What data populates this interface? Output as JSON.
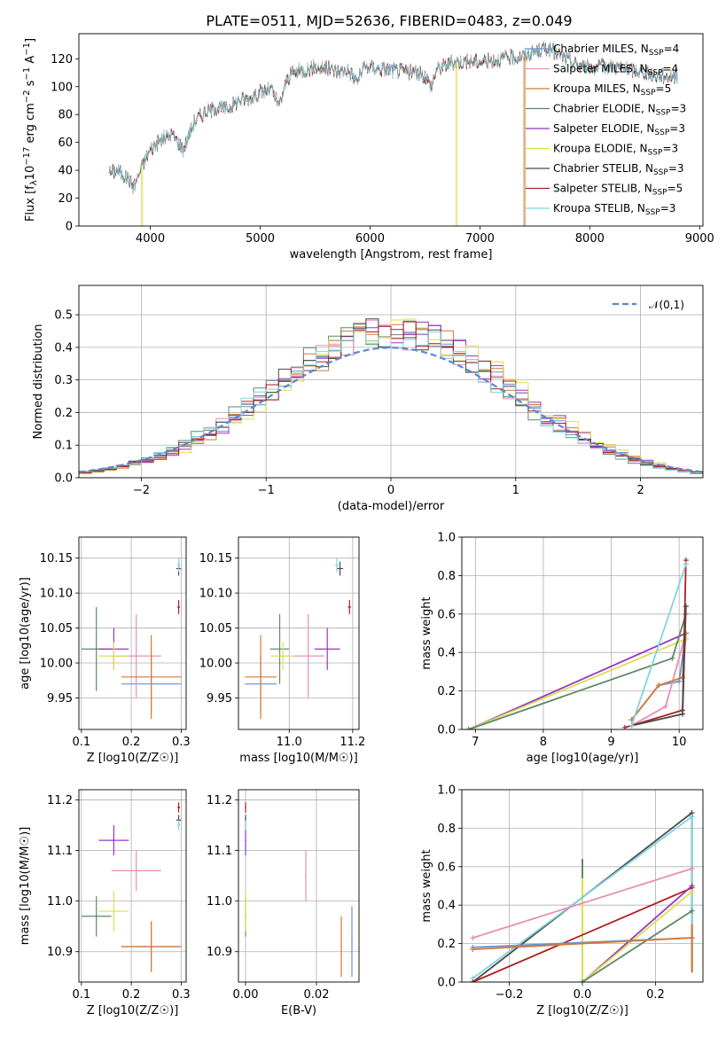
{
  "title": "PLATE=0511, MJD=52636, FIBERID=0483, z=0.049",
  "series": [
    {
      "name": "Chabrier MILES, N",
      "nssp": "4",
      "color": "#6a8fd6"
    },
    {
      "name": "Salpeter MILES, N",
      "nssp": "4",
      "color": "#e88fb4"
    },
    {
      "name": "Kroupa MILES, N",
      "nssp": "5",
      "color": "#d47a33"
    },
    {
      "name": "Chabrier ELODIE, N",
      "nssp": "3",
      "color": "#5e8a66"
    },
    {
      "name": "Salpeter ELODIE, N",
      "nssp": "3",
      "color": "#9a35c0"
    },
    {
      "name": "Kroupa ELODIE, N",
      "nssp": "3",
      "color": "#d9e050"
    },
    {
      "name": "Chabrier STELIB, N",
      "nssp": "3",
      "color": "#4a4a4a"
    },
    {
      "name": "Salpeter STELIB, N",
      "nssp": "5",
      "color": "#b01e1e"
    },
    {
      "name": "Kroupa STELIB, N",
      "nssp": "3",
      "color": "#80d4e0"
    }
  ],
  "legend_sub": "SSP",
  "chart_data": [
    {
      "type": "line",
      "id": "spectrum",
      "xlabel": "wavelength [Angstrom, rest frame]",
      "ylabel_html": "Flux [f_λ10^-17 erg cm^-2 s^-1 A^-1]",
      "xlim": [
        3350,
        9030
      ],
      "ylim": [
        0,
        138
      ],
      "xticks": [
        4000,
        5000,
        6000,
        7000,
        8000,
        9000
      ],
      "yticks": [
        0,
        20,
        40,
        60,
        80,
        100,
        120
      ],
      "envelope": [
        [
          3620,
          38
        ],
        [
          3700,
          40
        ],
        [
          3800,
          34
        ],
        [
          3850,
          28
        ],
        [
          3930,
          44
        ],
        [
          4000,
          55
        ],
        [
          4100,
          62
        ],
        [
          4200,
          66
        ],
        [
          4300,
          55
        ],
        [
          4400,
          75
        ],
        [
          4500,
          82
        ],
        [
          4600,
          85
        ],
        [
          4700,
          84
        ],
        [
          4800,
          90
        ],
        [
          4900,
          92
        ],
        [
          5000,
          96
        ],
        [
          5100,
          98
        ],
        [
          5170,
          86
        ],
        [
          5250,
          106
        ],
        [
          5300,
          110
        ],
        [
          5400,
          112
        ],
        [
          5500,
          114
        ],
        [
          5600,
          113
        ],
        [
          5700,
          111
        ],
        [
          5800,
          112
        ],
        [
          5880,
          104
        ],
        [
          5950,
          114
        ],
        [
          6000,
          114
        ],
        [
          6100,
          113
        ],
        [
          6200,
          112
        ],
        [
          6300,
          111
        ],
        [
          6400,
          110
        ],
        [
          6500,
          108
        ],
        [
          6560,
          100
        ],
        [
          6600,
          112
        ],
        [
          6700,
          116
        ],
        [
          6800,
          118
        ],
        [
          6900,
          118
        ],
        [
          7000,
          118
        ],
        [
          7100,
          119
        ],
        [
          7200,
          120
        ],
        [
          7300,
          121
        ],
        [
          7400,
          122
        ],
        [
          7500,
          125
        ],
        [
          7600,
          128
        ],
        [
          7700,
          124
        ],
        [
          7800,
          119
        ],
        [
          7900,
          115
        ],
        [
          8000,
          114
        ],
        [
          8100,
          114
        ],
        [
          8200,
          115
        ],
        [
          8300,
          113
        ],
        [
          8400,
          112
        ],
        [
          8500,
          110
        ],
        [
          8600,
          108
        ],
        [
          8700,
          108
        ],
        [
          8800,
          108
        ]
      ],
      "drops": [
        {
          "series": 5,
          "from": 3920,
          "to": 3930
        },
        {
          "series": 5,
          "from": 6780,
          "to": 6790
        },
        {
          "series": 2,
          "from": 7400,
          "to": 7410
        }
      ]
    },
    {
      "type": "step",
      "id": "residuals",
      "xlabel": "(data-model)/error",
      "ylabel": "Normed distribution",
      "xlim": [
        -2.5,
        2.5
      ],
      "ylim": [
        0,
        0.59
      ],
      "xticks": [
        -2,
        -1,
        0,
        1,
        2
      ],
      "yticks": [
        0.0,
        0.1,
        0.2,
        0.3,
        0.4,
        0.5
      ],
      "legend_label": "𝒩(0,1)",
      "normal_color": "#5b87d0"
    },
    {
      "type": "scatter",
      "id": "age-vs-z",
      "xlabel": "Z [log10(Z/Z☉)]",
      "ylabel": "age  [log10(age/yr)]",
      "xlim": [
        0.095,
        0.31
      ],
      "ylim": [
        9.905,
        10.18
      ],
      "xticks": [
        0.1,
        0.2,
        0.3
      ],
      "yticks": [
        9.95,
        10.0,
        10.05,
        10.1,
        10.15
      ],
      "points": [
        {
          "s": 0,
          "x": 0.24,
          "y": 9.97,
          "ex": 0.06,
          "ey": 0.04
        },
        {
          "s": 1,
          "x": 0.21,
          "y": 10.01,
          "ex": 0.05,
          "ey": 0.06
        },
        {
          "s": 2,
          "x": 0.24,
          "y": 9.98,
          "ex": 0.06,
          "ey": 0.06
        },
        {
          "s": 3,
          "x": 0.13,
          "y": 10.02,
          "ex": 0.03,
          "ey": 0.06
        },
        {
          "s": 4,
          "x": 0.165,
          "y": 10.02,
          "ex": 0.03,
          "ey": 0.03
        },
        {
          "s": 5,
          "x": 0.165,
          "y": 10.01,
          "ex": 0.03,
          "ey": 0.02
        },
        {
          "s": 6,
          "x": 0.295,
          "y": 10.135,
          "ex": 0.005,
          "ey": 0.01
        },
        {
          "s": 7,
          "x": 0.295,
          "y": 10.08,
          "ex": 0.003,
          "ey": 0.01
        },
        {
          "s": 8,
          "x": 0.295,
          "y": 10.14,
          "ex": 0.003,
          "ey": 0.01
        }
      ]
    },
    {
      "type": "scatter",
      "id": "age-vs-mass",
      "xlabel": "mass [log10(M/M☉)]",
      "ylabel": "",
      "xlim": [
        10.84,
        11.22
      ],
      "ylim": [
        9.905,
        10.18
      ],
      "xticks": [
        11.0,
        11.2
      ],
      "yticks": [
        9.95,
        10.0,
        10.05,
        10.1,
        10.15
      ],
      "points": [
        {
          "s": 0,
          "x": 10.91,
          "y": 9.97,
          "ex": 0.05,
          "ey": 0.04
        },
        {
          "s": 1,
          "x": 11.06,
          "y": 10.01,
          "ex": 0.05,
          "ey": 0.06
        },
        {
          "s": 2,
          "x": 10.91,
          "y": 9.98,
          "ex": 0.05,
          "ey": 0.06
        },
        {
          "s": 3,
          "x": 10.97,
          "y": 10.02,
          "ex": 0.03,
          "ey": 0.05
        },
        {
          "s": 4,
          "x": 11.12,
          "y": 10.02,
          "ex": 0.04,
          "ey": 0.03
        },
        {
          "s": 5,
          "x": 10.98,
          "y": 10.01,
          "ex": 0.04,
          "ey": 0.02
        },
        {
          "s": 6,
          "x": 11.16,
          "y": 10.135,
          "ex": 0.01,
          "ey": 0.01
        },
        {
          "s": 7,
          "x": 11.19,
          "y": 10.08,
          "ex": 0.005,
          "ey": 0.01
        },
        {
          "s": 8,
          "x": 11.15,
          "y": 10.14,
          "ex": 0.005,
          "ey": 0.01
        }
      ]
    },
    {
      "type": "line",
      "id": "weight-vs-age",
      "xlabel": "age  [log10(age/yr)]",
      "ylabel": "mass weight",
      "xlim": [
        6.8,
        10.35
      ],
      "ylim": [
        0,
        1.0
      ],
      "xticks": [
        7,
        8,
        9,
        10
      ],
      "yticks": [
        0.0,
        0.2,
        0.4,
        0.6,
        0.8,
        1.0
      ],
      "lines": [
        {
          "s": 4,
          "pts": [
            [
              6.9,
              0.0
            ],
            [
              10.1,
              0.5
            ]
          ]
        },
        {
          "s": 5,
          "pts": [
            [
              6.9,
              0.0
            ],
            [
              10.1,
              0.47
            ]
          ]
        },
        {
          "s": 3,
          "pts": [
            [
              6.9,
              0.0
            ],
            [
              9.9,
              0.37
            ],
            [
              10.1,
              0.6
            ]
          ]
        },
        {
          "s": 0,
          "pts": [
            [
              9.3,
              0.05
            ],
            [
              9.7,
              0.23
            ],
            [
              10.0,
              0.25
            ],
            [
              10.1,
              0.5
            ]
          ]
        },
        {
          "s": 1,
          "pts": [
            [
              9.3,
              0.02
            ],
            [
              9.8,
              0.12
            ],
            [
              10.1,
              0.5
            ]
          ]
        },
        {
          "s": 2,
          "pts": [
            [
              9.3,
              0.05
            ],
            [
              9.7,
              0.23
            ],
            [
              10.05,
              0.27
            ],
            [
              10.1,
              0.5
            ]
          ]
        },
        {
          "s": 7,
          "pts": [
            [
              9.2,
              0.01
            ],
            [
              10.05,
              0.1
            ],
            [
              10.1,
              0.88
            ]
          ]
        },
        {
          "s": 6,
          "pts": [
            [
              9.3,
              0.02
            ],
            [
              10.05,
              0.08
            ],
            [
              10.1,
              0.64
            ]
          ]
        },
        {
          "s": 8,
          "pts": [
            [
              9.3,
              0.02
            ],
            [
              10.1,
              0.86
            ]
          ]
        }
      ]
    },
    {
      "type": "scatter",
      "id": "mass-vs-z",
      "xlabel": "Z [log10(Z/Z☉)]",
      "ylabel": "mass [log10(M/M☉)]",
      "xlim": [
        0.095,
        0.31
      ],
      "ylim": [
        10.84,
        11.22
      ],
      "xticks": [
        0.1,
        0.2,
        0.3
      ],
      "yticks": [
        10.9,
        11.0,
        11.1,
        11.2
      ],
      "points": [
        {
          "s": 0,
          "x": 0.24,
          "y": 10.91,
          "ex": 0.06,
          "ey": 0.05
        },
        {
          "s": 1,
          "x": 0.21,
          "y": 11.06,
          "ex": 0.05,
          "ey": 0.04
        },
        {
          "s": 2,
          "x": 0.24,
          "y": 10.91,
          "ex": 0.06,
          "ey": 0.05
        },
        {
          "s": 3,
          "x": 0.13,
          "y": 10.97,
          "ex": 0.03,
          "ey": 0.04
        },
        {
          "s": 4,
          "x": 0.165,
          "y": 11.12,
          "ex": 0.03,
          "ey": 0.03
        },
        {
          "s": 5,
          "x": 0.165,
          "y": 10.98,
          "ex": 0.03,
          "ey": 0.04
        },
        {
          "s": 6,
          "x": 0.295,
          "y": 11.16,
          "ex": 0.005,
          "ey": 0.01
        },
        {
          "s": 7,
          "x": 0.295,
          "y": 11.185,
          "ex": 0.003,
          "ey": 0.01
        },
        {
          "s": 8,
          "x": 0.295,
          "y": 11.15,
          "ex": 0.003,
          "ey": 0.01
        }
      ]
    },
    {
      "type": "scatter",
      "id": "mass-vs-ebv",
      "xlabel": "E(B-V)",
      "ylabel": "",
      "xlim": [
        -0.002,
        0.032
      ],
      "ylim": [
        10.84,
        11.22
      ],
      "xticks": [
        0.0,
        0.02
      ],
      "yticks": [
        10.9,
        11.0,
        11.1,
        11.2
      ],
      "points": [
        {
          "s": 0,
          "x": 0.03,
          "y": 10.92,
          "ex": 0,
          "ey": 0.07
        },
        {
          "s": 1,
          "x": 0.017,
          "y": 11.05,
          "ex": 0,
          "ey": 0.05
        },
        {
          "s": 2,
          "x": 0.027,
          "y": 10.91,
          "ex": 0,
          "ey": 0.06
        },
        {
          "s": 3,
          "x": 0.0,
          "y": 10.97,
          "ex": 0,
          "ey": 0.04
        },
        {
          "s": 4,
          "x": 0.0,
          "y": 11.12,
          "ex": 0,
          "ey": 0.03
        },
        {
          "s": 5,
          "x": 0.0,
          "y": 10.98,
          "ex": 0,
          "ey": 0.04
        },
        {
          "s": 6,
          "x": 0.0,
          "y": 11.16,
          "ex": 0,
          "ey": 0.01
        },
        {
          "s": 7,
          "x": 0.0,
          "y": 11.185,
          "ex": 0,
          "ey": 0.01
        },
        {
          "s": 8,
          "x": 0.0,
          "y": 11.15,
          "ex": 0,
          "ey": 0.01
        }
      ]
    },
    {
      "type": "line",
      "id": "weight-vs-z",
      "xlabel": "Z [log10(Z/Z☉)]",
      "ylabel": "mass weight",
      "xlim": [
        -0.33,
        0.33
      ],
      "ylim": [
        0,
        1.0
      ],
      "xticks": [
        -0.2,
        0.0,
        0.2
      ],
      "yticks": [
        0.0,
        0.2,
        0.4,
        0.6,
        0.8,
        1.0
      ],
      "lines": [
        {
          "s": 6,
          "pts": [
            [
              -0.3,
              0.0
            ],
            [
              0.3,
              0.88
            ]
          ]
        },
        {
          "s": 8,
          "pts": [
            [
              -0.3,
              0.02
            ],
            [
              0.3,
              0.86
            ]
          ]
        },
        {
          "s": 1,
          "pts": [
            [
              -0.3,
              0.23
            ],
            [
              0.3,
              0.59
            ]
          ]
        },
        {
          "s": 7,
          "pts": [
            [
              -0.3,
              0.0
            ],
            [
              0.3,
              0.49
            ]
          ]
        },
        {
          "s": 4,
          "pts": [
            [
              0.0,
              0.0
            ],
            [
              0.3,
              0.5
            ]
          ]
        },
        {
          "s": 5,
          "pts": [
            [
              0.0,
              0.0
            ],
            [
              0.3,
              0.47
            ]
          ]
        },
        {
          "s": 3,
          "pts": [
            [
              0.0,
              0.0
            ],
            [
              0.3,
              0.37
            ]
          ]
        },
        {
          "s": 0,
          "pts": [
            [
              -0.3,
              0.18
            ],
            [
              0.3,
              0.23
            ]
          ]
        },
        {
          "s": 2,
          "pts": [
            [
              -0.3,
              0.17
            ],
            [
              0.3,
              0.23
            ]
          ]
        }
      ],
      "stems": [
        {
          "s": 3,
          "x": 0.0,
          "y0": 0.0,
          "y1": 0.64
        },
        {
          "s": 5,
          "x": 0.0,
          "y0": 0.0,
          "y1": 0.54
        },
        {
          "s": 6,
          "x": 0.3,
          "y0": 0.05,
          "y1": 0.88
        },
        {
          "s": 8,
          "x": 0.3,
          "y0": 0.05,
          "y1": 0.86
        },
        {
          "s": 2,
          "x": 0.3,
          "y0": 0.05,
          "y1": 0.3
        }
      ]
    }
  ]
}
